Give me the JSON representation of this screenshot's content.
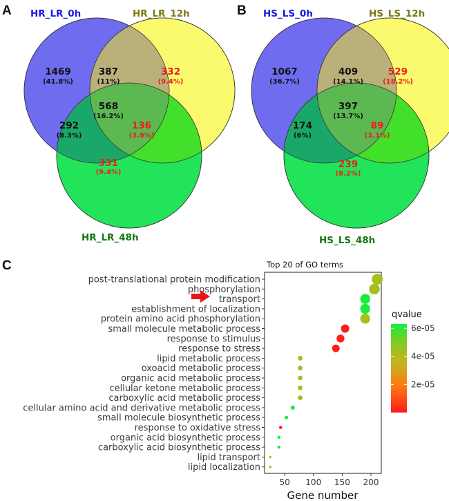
{
  "colors": {
    "red_text": "#ee1c1c",
    "black_text": "#111111",
    "circle_a": "#6f6cf0",
    "circle_b": "#fbfa6e",
    "circle_c": "#22e45a"
  },
  "panels": {
    "a": {
      "letter": "A",
      "set_titles": [
        {
          "text": "HR_LR_0h",
          "color": "#1a1adf"
        },
        {
          "text": "HR_LR_12h",
          "color": "#7a7a16"
        },
        {
          "text": "HR_LR_48h",
          "color": "#127a12"
        }
      ],
      "regions": [
        {
          "key": "only0",
          "count": "1469",
          "pct": "(41.8%)",
          "highlight": false
        },
        {
          "key": "0and12",
          "count": "387",
          "pct": "(11%)",
          "highlight": false
        },
        {
          "key": "only12",
          "count": "332",
          "pct": "(9.4%)",
          "highlight": true
        },
        {
          "key": "all",
          "count": "568",
          "pct": "(16.2%)",
          "highlight": false
        },
        {
          "key": "0and48",
          "count": "292",
          "pct": "(8.3%)",
          "highlight": false
        },
        {
          "key": "12and48",
          "count": "136",
          "pct": "(3.9%)",
          "highlight": true
        },
        {
          "key": "only48",
          "count": "331",
          "pct": "(9.4%)",
          "highlight": true
        }
      ]
    },
    "b": {
      "letter": "B",
      "set_titles": [
        {
          "text": "HS_LS_0h",
          "color": "#1a1adf"
        },
        {
          "text": "HS_LS_12h",
          "color": "#7a7a16"
        },
        {
          "text": "HS_LS_48h",
          "color": "#127a12"
        }
      ],
      "regions": [
        {
          "key": "only0",
          "count": "1067",
          "pct": "(36.7%)",
          "highlight": false
        },
        {
          "key": "0and12",
          "count": "409",
          "pct": "(14.1%)",
          "highlight": false
        },
        {
          "key": "only12",
          "count": "529",
          "pct": "(18.2%)",
          "highlight": true
        },
        {
          "key": "all",
          "count": "397",
          "pct": "(13.7%)",
          "highlight": false
        },
        {
          "key": "0and48",
          "count": "174",
          "pct": "(6%)",
          "highlight": false
        },
        {
          "key": "12and48",
          "count": "89",
          "pct": "(3.1%)",
          "highlight": true
        },
        {
          "key": "only48",
          "count": "239",
          "pct": "(8.2%)",
          "highlight": true
        }
      ]
    },
    "c": {
      "letter": "C"
    }
  },
  "chart_data": {
    "type": "scatter",
    "title": "Top 20 of GO terms",
    "xlabel": "Gene number",
    "ylabel": "",
    "xlim": [
      15,
      218
    ],
    "xticks": [
      50,
      100,
      150,
      200
    ],
    "legend_title": "qvalue",
    "color_scale": {
      "min": 0,
      "max": 6.3e-05,
      "ticks": [
        {
          "value": 2e-05,
          "label": "2e-05"
        },
        {
          "value": 4e-05,
          "label": "4e-05"
        },
        {
          "value": 6e-05,
          "label": "6e-05"
        }
      ],
      "stops": [
        {
          "t": 0.0,
          "color": "#ff1a1a"
        },
        {
          "t": 0.3,
          "color": "#ff7a12"
        },
        {
          "t": 0.55,
          "color": "#c8b21e"
        },
        {
          "t": 0.78,
          "color": "#8cc81e"
        },
        {
          "t": 1.0,
          "color": "#12f03c"
        }
      ]
    },
    "highlight_arrow_term": "transport",
    "points": [
      {
        "term": "post-translational protein modification",
        "gene_number": 211,
        "qvalue": 4.3e-05
      },
      {
        "term": "phosphorylation",
        "gene_number": 206,
        "qvalue": 4.3e-05
      },
      {
        "term": "transport",
        "gene_number": 190,
        "qvalue": 6.2e-05
      },
      {
        "term": "establishment of localization",
        "gene_number": 190,
        "qvalue": 6.2e-05
      },
      {
        "term": "protein amino acid phosphorylation",
        "gene_number": 190,
        "qvalue": 4.3e-05
      },
      {
        "term": "small molecule metabolic process",
        "gene_number": 155,
        "qvalue": 1e-06
      },
      {
        "term": "response to stimulus",
        "gene_number": 147,
        "qvalue": 1e-06
      },
      {
        "term": "response to stress",
        "gene_number": 139,
        "qvalue": 1e-06
      },
      {
        "term": "lipid metabolic process",
        "gene_number": 77,
        "qvalue": 4.3e-05
      },
      {
        "term": "oxoacid metabolic process",
        "gene_number": 77,
        "qvalue": 4.3e-05
      },
      {
        "term": "organic acid metabolic process",
        "gene_number": 77,
        "qvalue": 4.3e-05
      },
      {
        "term": "cellular ketone metabolic process",
        "gene_number": 77,
        "qvalue": 4.3e-05
      },
      {
        "term": "carboxylic acid metabolic process",
        "gene_number": 77,
        "qvalue": 4.3e-05
      },
      {
        "term": "cellular amino acid and derivative metabolic process",
        "gene_number": 64,
        "qvalue": 6.2e-05
      },
      {
        "term": "small molecule biosynthetic process",
        "gene_number": 53,
        "qvalue": 6.2e-05
      },
      {
        "term": "response to oxidative stress",
        "gene_number": 43,
        "qvalue": 1e-06
      },
      {
        "term": "organic acid biosynthetic process",
        "gene_number": 40,
        "qvalue": 6.2e-05
      },
      {
        "term": "carboxylic acid biosynthetic process",
        "gene_number": 40,
        "qvalue": 6.2e-05
      },
      {
        "term": "lipid transport",
        "gene_number": 25,
        "qvalue": 4.3e-05
      },
      {
        "term": "lipid localization",
        "gene_number": 25,
        "qvalue": 4.3e-05
      }
    ]
  }
}
